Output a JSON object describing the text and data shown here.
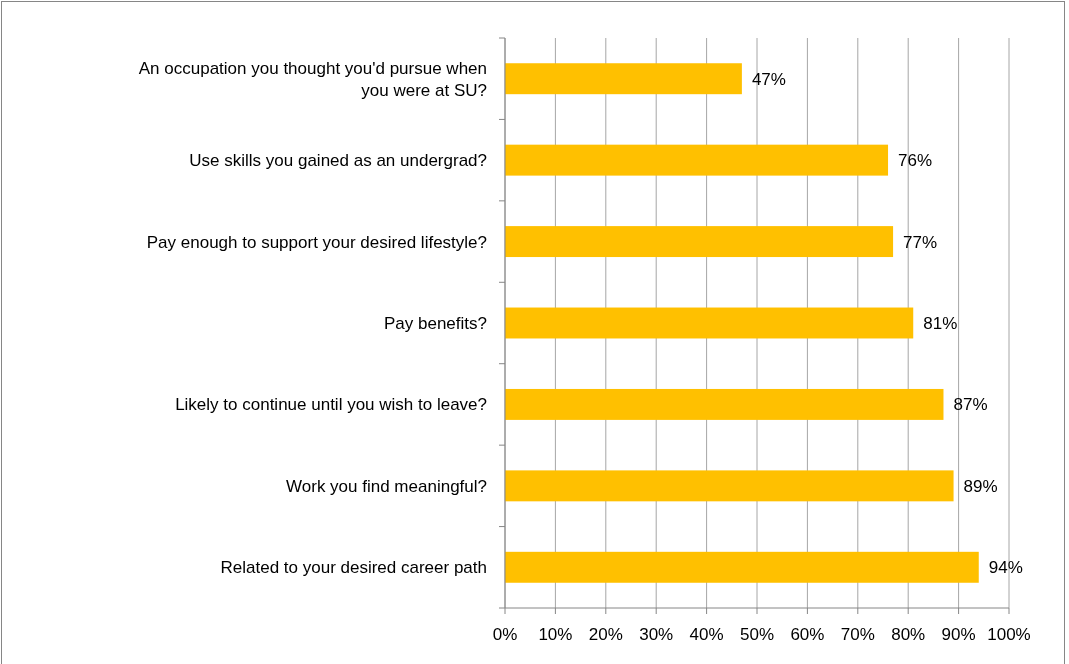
{
  "chart_data": {
    "type": "bar",
    "orientation": "horizontal",
    "categories": [
      "An occupation you thought you'd pursue when you were at SU?",
      "Use skills you gained as an undergrad?",
      "Pay enough to support your desired lifestyle?",
      "Pay benefits?",
      "Likely to continue until you wish to leave?",
      "Work you find meaningful?",
      "Related to your desired career path"
    ],
    "values": [
      47,
      76,
      77,
      81,
      87,
      89,
      94
    ],
    "value_labels": [
      "47%",
      "76%",
      "77%",
      "81%",
      "87%",
      "89%",
      "94%"
    ],
    "color": "#ffc000",
    "xlim": [
      0,
      100
    ],
    "xticks": [
      {
        "value": 0,
        "label": "0%"
      },
      {
        "value": 10,
        "label": "10%"
      },
      {
        "value": 20,
        "label": "20%"
      },
      {
        "value": 30,
        "label": "30%"
      },
      {
        "value": 40,
        "label": "40%"
      },
      {
        "value": 50,
        "label": "50%"
      },
      {
        "value": 60,
        "label": "60%"
      },
      {
        "value": 70,
        "label": "70%"
      },
      {
        "value": 80,
        "label": "80%"
      },
      {
        "value": 90,
        "label": "90%"
      },
      {
        "value": 100,
        "label": "100%"
      }
    ],
    "grid": "x"
  }
}
